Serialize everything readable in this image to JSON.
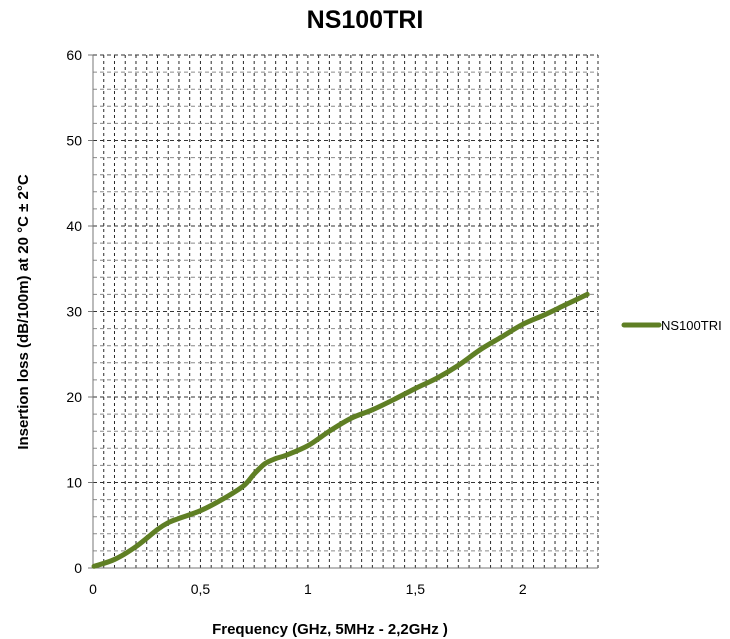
{
  "chart_data": {
    "type": "line",
    "title": "NS100TRI",
    "xlabel": "Frequency (GHz, 5MHz - 2,2GHz )",
    "ylabel": "Insertion loss (dB/100m) at 20 °C ± 2°C",
    "xlim": [
      0,
      2.35
    ],
    "ylim": [
      0,
      60
    ],
    "x_tick_values": [
      0,
      0.5,
      1,
      1.5,
      2
    ],
    "x_tick_labels": [
      "0",
      "0,5",
      "1",
      "1,5",
      "2"
    ],
    "y_tick_values": [
      0,
      10,
      20,
      30,
      40,
      50,
      60
    ],
    "y_tick_labels": [
      "0",
      "10",
      "20",
      "30",
      "40",
      "50",
      "60"
    ],
    "grid": true,
    "legend": "right",
    "series": [
      {
        "name": "NS100TRI",
        "color": "#5f7f24",
        "x": [
          0.005,
          0.1,
          0.2,
          0.3,
          0.35,
          0.4,
          0.5,
          0.6,
          0.7,
          0.75,
          0.8,
          0.85,
          0.9,
          1.0,
          1.1,
          1.2,
          1.3,
          1.4,
          1.5,
          1.6,
          1.7,
          1.8,
          1.9,
          2.0,
          2.1,
          2.2,
          2.3
        ],
        "values": [
          0.2,
          1.0,
          2.5,
          4.5,
          5.3,
          5.8,
          6.7,
          8.0,
          9.6,
          11.0,
          12.2,
          12.8,
          13.2,
          14.3,
          16.0,
          17.5,
          18.5,
          19.7,
          21.0,
          22.2,
          23.7,
          25.5,
          27.0,
          28.5,
          29.6,
          30.8,
          32.0
        ]
      }
    ]
  }
}
